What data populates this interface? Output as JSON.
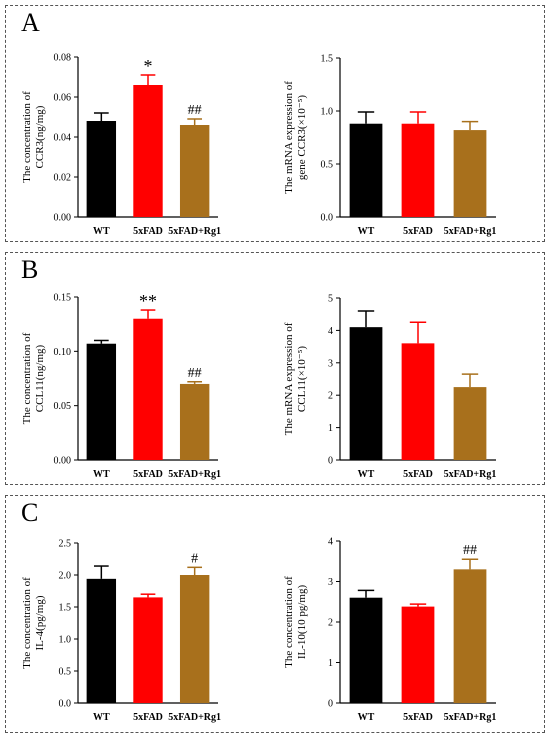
{
  "panels": [
    {
      "letter": "A"
    },
    {
      "letter": "B"
    },
    {
      "letter": "C"
    }
  ],
  "colors": {
    "WT": "#000000",
    "5xFAD": "#ff0000",
    "5xFAD+Rg1": "#a8701c"
  },
  "chart_data": [
    {
      "type": "bar",
      "panel": "A",
      "categories": [
        "WT",
        "5xFAD",
        "5xFAD+Rg1"
      ],
      "values": [
        0.048,
        0.066,
        0.046
      ],
      "errors": [
        0.004,
        0.005,
        0.003
      ],
      "annotations": [
        "",
        "*",
        "##"
      ],
      "ylabel_lines": [
        "The concentration of",
        "CCR3(ng/mg)"
      ],
      "yticks": [
        "0.00",
        "0.02",
        "0.04",
        "0.06",
        "0.08"
      ],
      "ylim": [
        0,
        0.08
      ]
    },
    {
      "type": "bar",
      "panel": "A",
      "categories": [
        "WT",
        "5xFAD",
        "5xFAD+Rg1"
      ],
      "values": [
        0.88,
        0.88,
        0.82
      ],
      "errors": [
        0.11,
        0.11,
        0.08
      ],
      "annotations": [
        "",
        "",
        ""
      ],
      "ylabel_lines": [
        "The mRNA expression of",
        "gene CCR3(×10⁻⁵)"
      ],
      "yticks": [
        "0.0",
        "0.5",
        "1.0",
        "1.5"
      ],
      "ylim": [
        0,
        1.5
      ]
    },
    {
      "type": "bar",
      "panel": "B",
      "categories": [
        "WT",
        "5xFAD",
        "5xFAD+Rg1"
      ],
      "values": [
        0.107,
        0.13,
        0.07
      ],
      "errors": [
        0.003,
        0.008,
        0.002
      ],
      "annotations": [
        "",
        "**",
        "##"
      ],
      "ylabel_lines": [
        "The concentration of",
        "CCL11(ng/mg)"
      ],
      "yticks": [
        "0.00",
        "0.05",
        "0.10",
        "0.15"
      ],
      "ylim": [
        0,
        0.15
      ]
    },
    {
      "type": "bar",
      "panel": "B",
      "categories": [
        "WT",
        "5xFAD",
        "5xFAD+Rg1"
      ],
      "values": [
        4.1,
        3.6,
        2.25
      ],
      "errors": [
        0.5,
        0.65,
        0.4
      ],
      "annotations": [
        "",
        "",
        ""
      ],
      "ylabel_lines": [
        "The mRNA expression of",
        "CCL11(×10⁻⁵)"
      ],
      "yticks": [
        "0",
        "1",
        "2",
        "3",
        "4",
        "5"
      ],
      "ylim": [
        0,
        5
      ]
    },
    {
      "type": "bar",
      "panel": "C",
      "categories": [
        "WT",
        "5xFAD",
        "5xFAD+Rg1"
      ],
      "values": [
        1.94,
        1.65,
        2.0
      ],
      "errors": [
        0.2,
        0.05,
        0.12
      ],
      "annotations": [
        "",
        "",
        "#"
      ],
      "ylabel_lines": [
        "The concentration of",
        "IL-4(pg/mg)"
      ],
      "yticks": [
        "0.0",
        "0.5",
        "1.0",
        "1.5",
        "2.0",
        "2.5"
      ],
      "ylim": [
        0,
        2.5
      ]
    },
    {
      "type": "bar",
      "panel": "C",
      "categories": [
        "WT",
        "5xFAD",
        "5xFAD+Rg1"
      ],
      "values": [
        2.6,
        2.38,
        3.3
      ],
      "errors": [
        0.18,
        0.06,
        0.25
      ],
      "annotations": [
        "",
        "",
        "##"
      ],
      "ylabel_lines": [
        "The concentration of",
        "IL-10(10 pg/mg)"
      ],
      "yticks": [
        "0",
        "1",
        "2",
        "3",
        "4"
      ],
      "ylim": [
        0,
        4
      ]
    }
  ]
}
